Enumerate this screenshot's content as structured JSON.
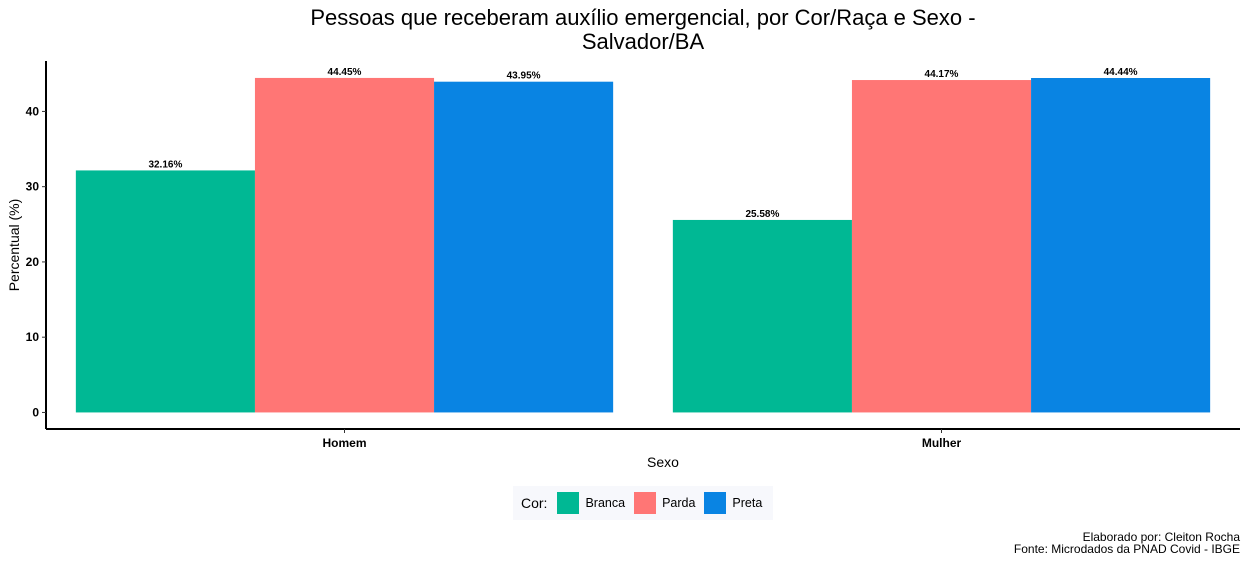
{
  "chart_data": {
    "type": "bar",
    "title_lines": [
      "Pessoas que receberam auxílio emergencial, por Cor/Raça e Sexo -",
      "Salvador/BA"
    ],
    "xlabel": "Sexo",
    "ylabel": "Percentual (%)",
    "categories": [
      "Homem",
      "Mulher"
    ],
    "series": [
      {
        "name": "Branca",
        "color": "#00b894",
        "values": [
          32.16,
          25.58
        ],
        "labels": [
          "32.16%",
          "25.58%"
        ]
      },
      {
        "name": "Parda",
        "color": "#ff7675",
        "values": [
          44.45,
          44.17
        ],
        "labels": [
          "44.45%",
          "44.17%"
        ]
      },
      {
        "name": "Preta",
        "color": "#0984e3",
        "values": [
          43.95,
          44.44
        ],
        "labels": [
          "43.95%",
          "44.44%"
        ]
      }
    ],
    "yticks": [
      0,
      10,
      20,
      30,
      40
    ],
    "ylim": [
      -2.2,
      46.7
    ],
    "grid": false,
    "legend": {
      "title": "Cor:",
      "position": "bottom"
    }
  },
  "caption": {
    "author": "Elaborado por: Cleiton Rocha",
    "source": "Fonte: Microdados da PNAD Covid - IBGE"
  }
}
